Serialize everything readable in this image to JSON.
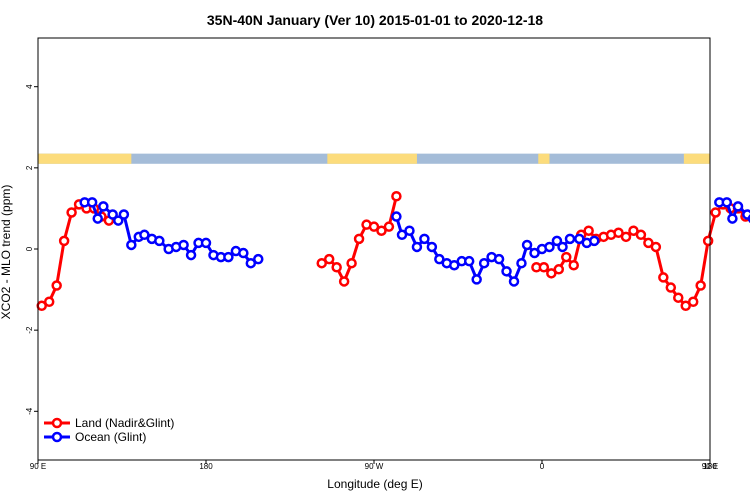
{
  "chart_data": {
    "type": "line",
    "title": "35N-40N January (Ver 10)   2015-01-01 to 2020-12-18",
    "xlabel": "Longitude (deg E)",
    "ylabel": "XCO2 - MLO trend (ppm)",
    "xlim": [
      90,
      450
    ],
    "ylim": [
      -5.2,
      5.2
    ],
    "x_ticks": [
      {
        "value": 90,
        "label": "90 E"
      },
      {
        "value": 180,
        "label": "180"
      },
      {
        "value": 270,
        "label": "90 W"
      },
      {
        "value": 360,
        "label": "0"
      },
      {
        "value": 450,
        "label": "90 E"
      },
      {
        "value": 540,
        "label": "180"
      }
    ],
    "y_ticks": [
      {
        "value": -4,
        "label": "-4"
      },
      {
        "value": -2,
        "label": "-2"
      },
      {
        "value": 0,
        "label": "0"
      },
      {
        "value": 2,
        "label": "2"
      },
      {
        "value": 4,
        "label": "4"
      }
    ],
    "legend_position": "bottom-left",
    "land_ocean_strip": {
      "y_range": [
        2.1,
        2.35
      ],
      "ocean_color": "#a4bcd8",
      "land_color": "#fcdc7c",
      "land_spans": [
        [
          90,
          140
        ],
        [
          245,
          293
        ],
        [
          358,
          364
        ],
        [
          436,
          500
        ],
        [
          509,
          540
        ]
      ]
    },
    "series": [
      {
        "name": "Land (Nadir&Glint)",
        "color": "#ff0000",
        "segments": [
          [
            [
              92,
              -1.4
            ],
            [
              96,
              -1.3
            ],
            [
              100,
              -0.9
            ],
            [
              104,
              0.2
            ],
            [
              108,
              0.9
            ],
            [
              112,
              1.1
            ],
            [
              116,
              1.0
            ],
            [
              120,
              1.0
            ],
            [
              124,
              0.8
            ],
            [
              128,
              0.7
            ]
          ],
          [
            [
              242,
              -0.35
            ],
            [
              246,
              -0.25
            ],
            [
              250,
              -0.45
            ],
            [
              254,
              -0.8
            ],
            [
              258,
              -0.35
            ],
            [
              262,
              0.25
            ],
            [
              266,
              0.6
            ],
            [
              270,
              0.55
            ],
            [
              274,
              0.45
            ],
            [
              278,
              0.55
            ],
            [
              282,
              1.3
            ]
          ],
          [
            [
              357,
              -0.45
            ],
            [
              361,
              -0.45
            ],
            [
              365,
              -0.6
            ],
            [
              369,
              -0.5
            ],
            [
              373,
              -0.2
            ],
            [
              377,
              -0.4
            ],
            [
              381,
              0.35
            ],
            [
              385,
              0.45
            ],
            [
              389,
              0.25
            ],
            [
              393,
              0.3
            ],
            [
              397,
              0.35
            ],
            [
              401,
              0.4
            ],
            [
              405,
              0.3
            ],
            [
              409,
              0.45
            ],
            [
              413,
              0.35
            ],
            [
              417,
              0.15
            ],
            [
              421,
              0.05
            ],
            [
              425,
              -0.7
            ],
            [
              429,
              -0.95
            ],
            [
              433,
              -1.2
            ],
            [
              437,
              -1.4
            ],
            [
              441,
              -1.3
            ],
            [
              445,
              -0.9
            ],
            [
              449,
              0.2
            ],
            [
              453,
              0.9
            ],
            [
              457,
              1.1
            ],
            [
              461,
              1.0
            ],
            [
              465,
              1.0
            ],
            [
              469,
              0.8
            ],
            [
              473,
              0.75
            ]
          ]
        ]
      },
      {
        "name": "Ocean (Glint)",
        "color": "#0000ff",
        "segments": [
          [
            [
              115,
              1.15
            ],
            [
              119,
              1.15
            ],
            [
              122,
              0.75
            ],
            [
              125,
              1.05
            ],
            [
              130,
              0.85
            ],
            [
              133,
              0.7
            ],
            [
              136,
              0.85
            ],
            [
              140,
              0.1
            ],
            [
              144,
              0.3
            ],
            [
              147,
              0.35
            ],
            [
              151,
              0.25
            ],
            [
              155,
              0.2
            ],
            [
              160,
              0.0
            ],
            [
              164,
              0.05
            ],
            [
              168,
              0.1
            ],
            [
              172,
              -0.15
            ],
            [
              176,
              0.15
            ],
            [
              180,
              0.15
            ],
            [
              184,
              -0.15
            ],
            [
              188,
              -0.2
            ],
            [
              192,
              -0.2
            ],
            [
              196,
              -0.05
            ],
            [
              200,
              -0.1
            ],
            [
              204,
              -0.35
            ],
            [
              208,
              -0.25
            ]
          ],
          [
            [
              282,
              0.8
            ],
            [
              285,
              0.35
            ],
            [
              289,
              0.45
            ],
            [
              293,
              0.05
            ],
            [
              297,
              0.25
            ],
            [
              301,
              0.05
            ],
            [
              305,
              -0.25
            ],
            [
              309,
              -0.35
            ],
            [
              313,
              -0.4
            ],
            [
              317,
              -0.3
            ],
            [
              321,
              -0.3
            ],
            [
              325,
              -0.75
            ],
            [
              329,
              -0.35
            ],
            [
              333,
              -0.2
            ],
            [
              337,
              -0.25
            ],
            [
              341,
              -0.55
            ],
            [
              345,
              -0.8
            ],
            [
              349,
              -0.35
            ],
            [
              352,
              0.1
            ],
            [
              356,
              -0.1
            ],
            [
              360,
              0.0
            ],
            [
              364,
              0.05
            ],
            [
              368,
              0.2
            ],
            [
              371,
              0.05
            ],
            [
              375,
              0.25
            ],
            [
              380,
              0.25
            ],
            [
              384,
              0.15
            ],
            [
              388,
              0.2
            ]
          ],
          [
            [
              455,
              1.15
            ],
            [
              459,
              1.15
            ],
            [
              462,
              0.75
            ],
            [
              465,
              1.05
            ],
            [
              470,
              0.85
            ],
            [
              473,
              0.75
            ],
            [
              476,
              0.85
            ],
            [
              480,
              0.1
            ],
            [
              484,
              0.3
            ],
            [
              487,
              0.35
            ],
            [
              491,
              0.3
            ],
            [
              495,
              0.2
            ],
            [
              500,
              0.0
            ]
          ]
        ]
      }
    ]
  }
}
